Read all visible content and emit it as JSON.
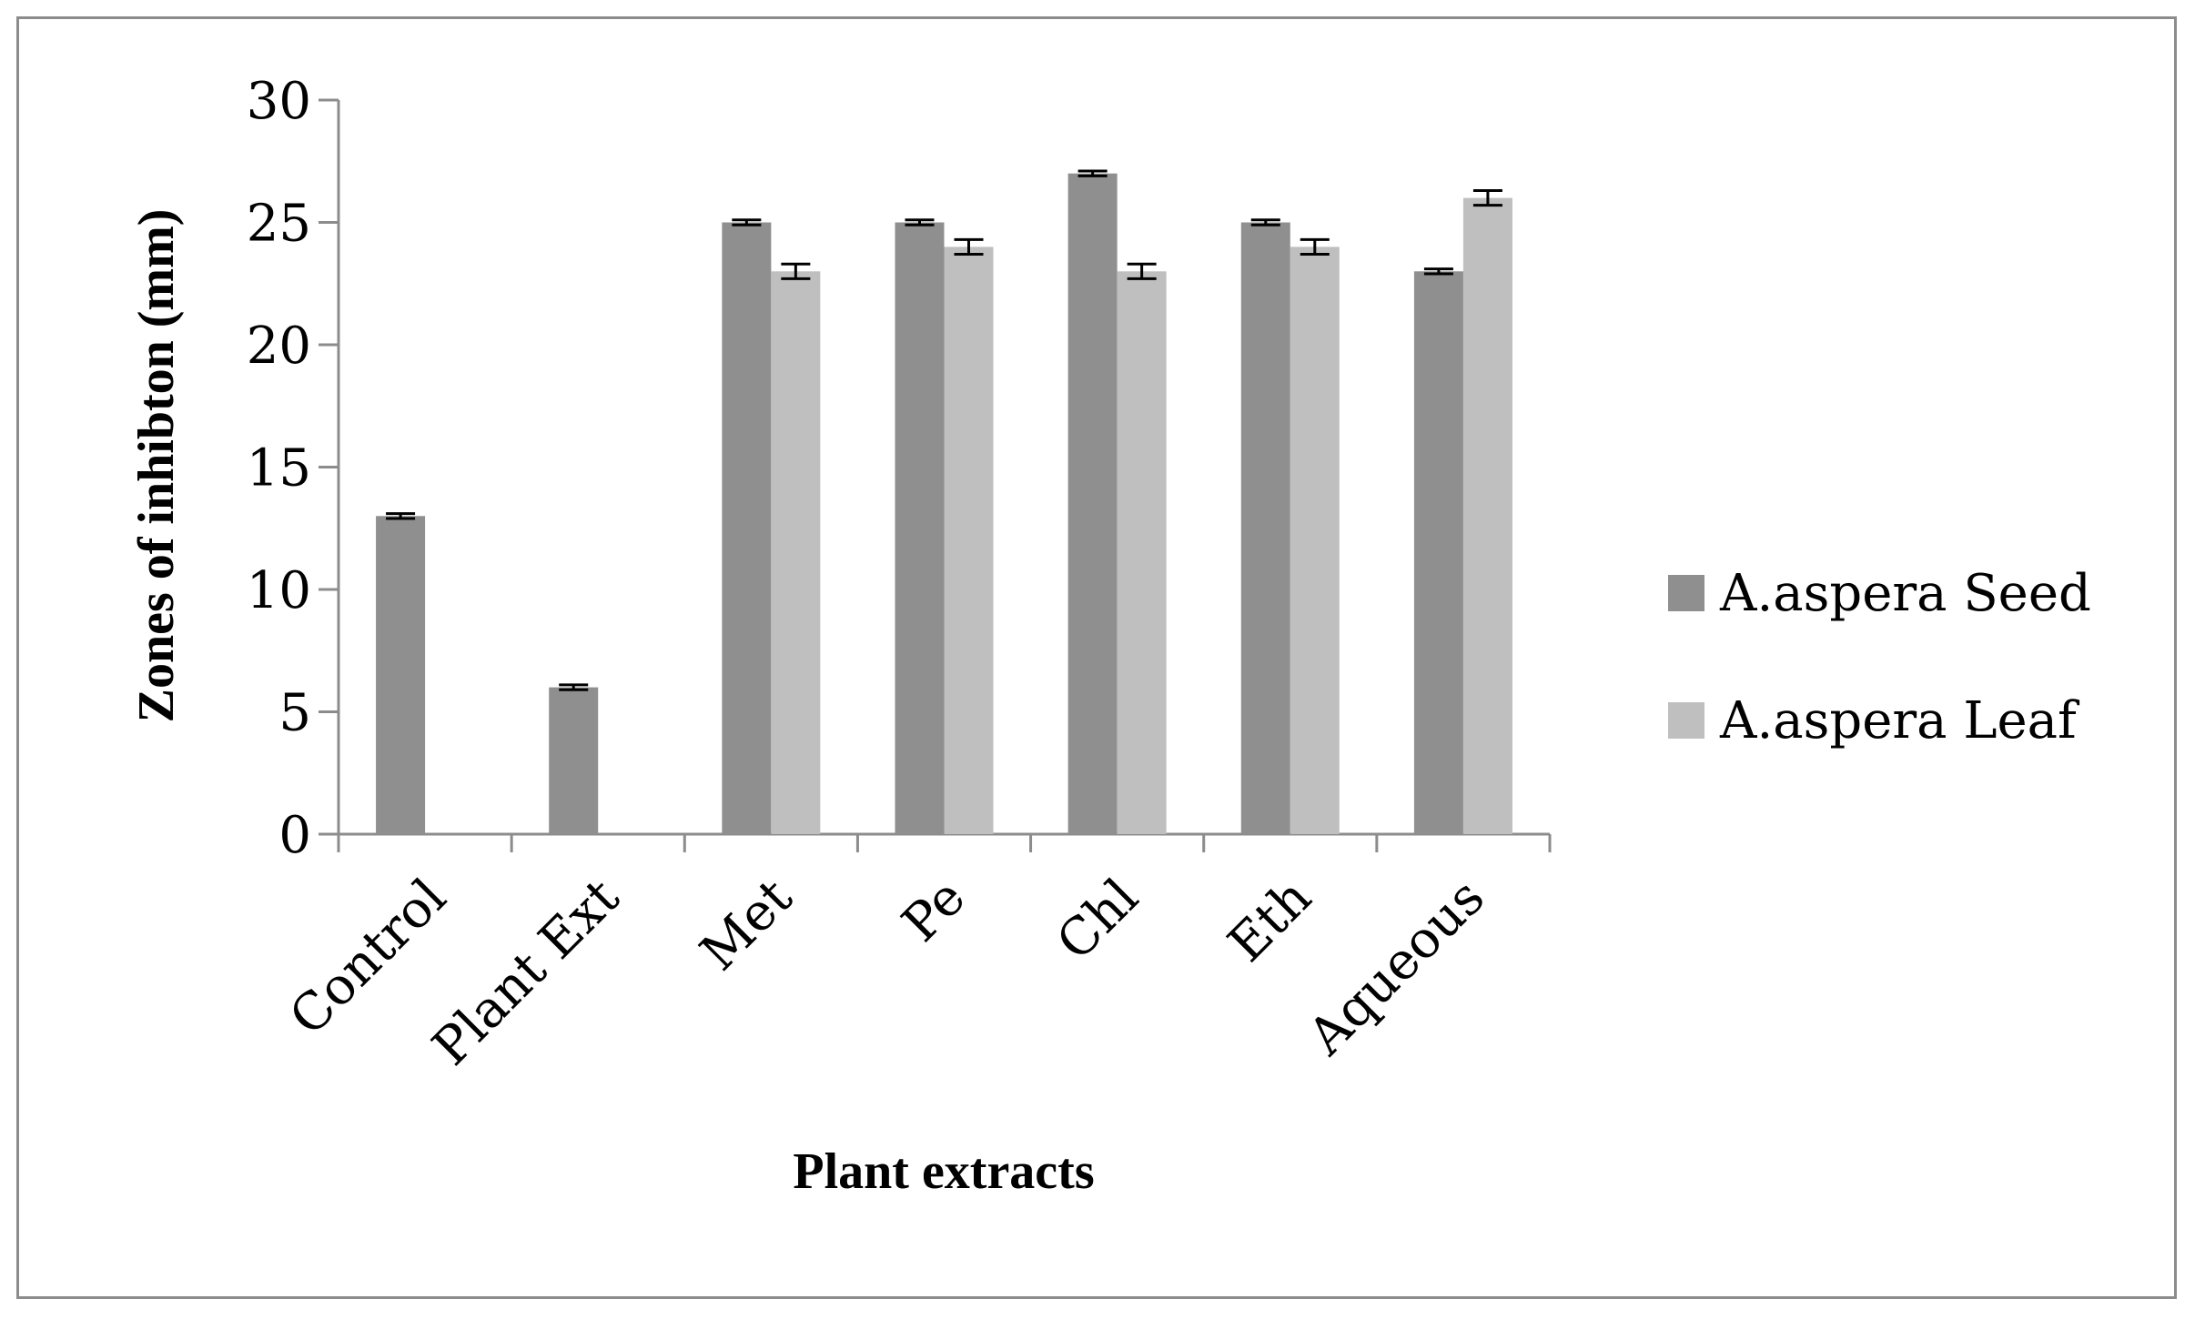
{
  "chart_data": {
    "type": "bar",
    "title": "",
    "xlabel": "Plant extracts",
    "ylabel": "Zones of inhibton (mm)",
    "categories": [
      "Control",
      "Plant Ext",
      "Met",
      "Pe",
      "Chl",
      "Eth",
      "Aqueous"
    ],
    "series": [
      {
        "name": "A.aspera Seed",
        "color": "#8f8f8f",
        "values": [
          13,
          6,
          25,
          25,
          27,
          25,
          23
        ],
        "errors": [
          0.1,
          0.1,
          0.1,
          0.1,
          0.1,
          0.1,
          0.1
        ]
      },
      {
        "name": "A.aspera Leaf",
        "color": "#bfbfbf",
        "values": [
          null,
          null,
          23,
          24,
          23,
          24,
          26
        ],
        "errors": [
          null,
          null,
          0.3,
          0.3,
          0.3,
          0.3,
          0.3
        ]
      }
    ],
    "ylim": [
      0,
      30
    ],
    "yticks": [
      0,
      5,
      10,
      15,
      20,
      25,
      30
    ],
    "grid": false,
    "legend_position": "right"
  }
}
